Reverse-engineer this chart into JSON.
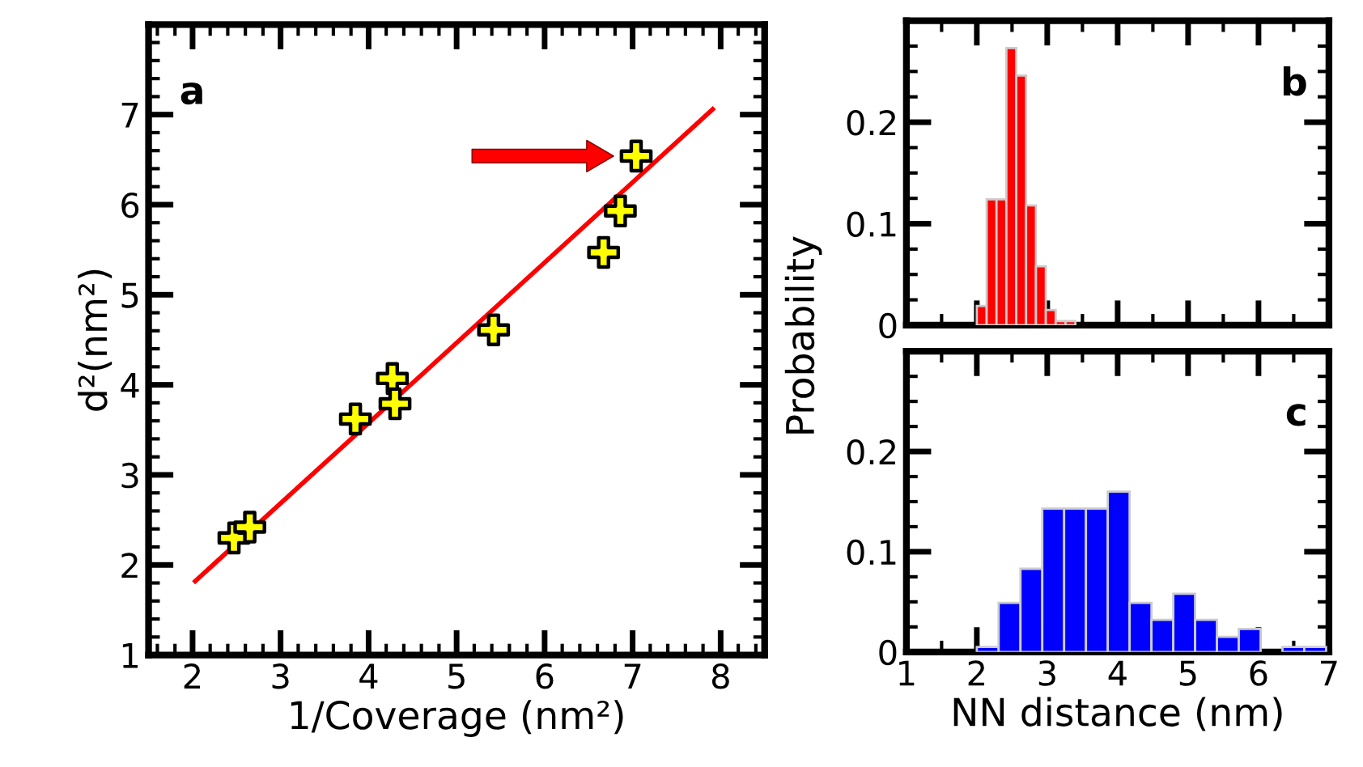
{
  "chart_data": [
    {
      "type": "scatter",
      "xlabel": "1/Coverage (nm²)",
      "ylabel": "d²(nm²)",
      "xlim": [
        1.5,
        8.5
      ],
      "ylim": [
        1,
        8
      ],
      "xticks": [
        2,
        3,
        4,
        5,
        6,
        7,
        8
      ],
      "yticks": [
        1,
        2,
        3,
        4,
        5,
        6,
        7
      ],
      "grid": false,
      "legend": false,
      "annotations": [
        "a"
      ],
      "series": [
        {
          "type": "scatter",
          "color": "#ffff00",
          "marker": "cross",
          "x": [
            2.47,
            2.65,
            3.85,
            4.27,
            4.3,
            5.42,
            6.67,
            6.86,
            7.04
          ],
          "values": [
            2.3,
            2.42,
            3.62,
            4.07,
            3.79,
            4.61,
            5.47,
            5.93,
            6.54
          ]
        },
        {
          "type": "line",
          "color": "#ff0000",
          "marker": "none",
          "line_style": "solid",
          "x": [
            2.03,
            7.91
          ],
          "values": [
            1.82,
            7.06
          ]
        }
      ]
    },
    {
      "type": "histogram",
      "color": "#ff0000",
      "bins": [
        2.0,
        2.14,
        2.28,
        2.42,
        2.56,
        2.7,
        2.84,
        2.98,
        3.12,
        3.26,
        3.4
      ],
      "values": [
        0.019,
        0.124,
        0.124,
        0.273,
        0.246,
        0.118,
        0.058,
        0.015,
        0.004,
        0.004
      ],
      "xlim": [
        1,
        7
      ],
      "ylim": [
        0,
        0.3
      ],
      "xticks": [
        1,
        2,
        3,
        4,
        5,
        6,
        7
      ],
      "yticks": [
        0,
        0.1,
        0.2
      ],
      "tick_labels": "y",
      "grid": false,
      "annotations": [
        "b"
      ]
    },
    {
      "type": "histogram",
      "color": "#0000ff",
      "bins": [
        2.0,
        2.31,
        2.62,
        2.93,
        3.24,
        3.55,
        3.86,
        4.17,
        4.48,
        4.79,
        5.1,
        5.41,
        5.72,
        6.03,
        6.34,
        6.65,
        6.96
      ],
      "values": [
        0.005,
        0.049,
        0.083,
        0.143,
        0.143,
        0.143,
        0.16,
        0.049,
        0.032,
        0.058,
        0.032,
        0.015,
        0.023,
        0,
        0.005,
        0.005
      ],
      "xlim": [
        1,
        7
      ],
      "ylim": [
        0,
        0.3
      ],
      "xticks": [
        1,
        2,
        3,
        4,
        5,
        6,
        7
      ],
      "yticks": [
        0,
        0.1,
        0.2
      ],
      "xlabel": "NN distance (nm)",
      "ylabel": "Probability",
      "grid": false,
      "annotations": [
        "c"
      ]
    }
  ]
}
